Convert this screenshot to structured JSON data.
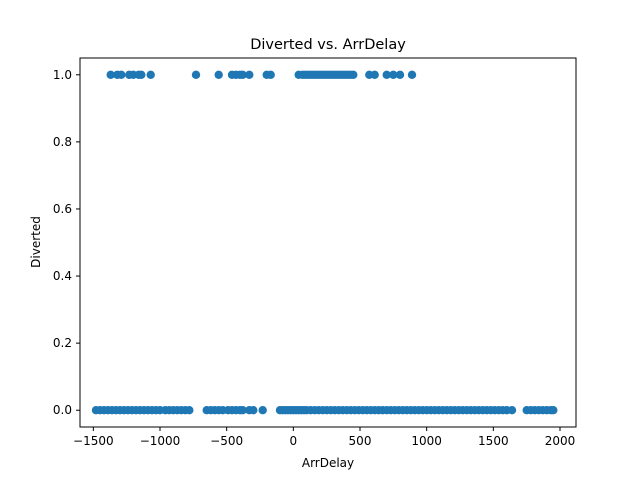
{
  "chart_data": {
    "type": "scatter",
    "title": "Diverted vs. ArrDelay",
    "xlabel": "ArrDelay",
    "ylabel": "Diverted",
    "xlim": [
      -1600,
      2120
    ],
    "ylim": [
      -0.05,
      1.05
    ],
    "xticks": [
      -1500,
      -1000,
      -500,
      0,
      500,
      1000,
      1500,
      2000
    ],
    "yticks": [
      0.0,
      0.2,
      0.4,
      0.6,
      0.8,
      1.0
    ],
    "xtick_labels": [
      "−1500",
      "−1000",
      "−500",
      "0",
      "500",
      "1000",
      "1500",
      "2000"
    ],
    "ytick_labels": [
      "0.0",
      "0.2",
      "0.4",
      "0.6",
      "0.8",
      "1.0"
    ],
    "grid": false,
    "marker_color": "#1f77b4",
    "series": [
      {
        "name": "",
        "points": [
          [
            -1370,
            1
          ],
          [
            -1320,
            1
          ],
          [
            -1290,
            1
          ],
          [
            -1230,
            1
          ],
          [
            -1200,
            1
          ],
          [
            -1160,
            1
          ],
          [
            -1140,
            1
          ],
          [
            -1070,
            1
          ],
          [
            -730,
            1
          ],
          [
            -560,
            1
          ],
          [
            -460,
            1
          ],
          [
            -430,
            1
          ],
          [
            -400,
            1
          ],
          [
            -380,
            1
          ],
          [
            -330,
            1
          ],
          [
            -200,
            1
          ],
          [
            -170,
            1
          ],
          [
            40,
            1
          ],
          [
            70,
            1
          ],
          [
            90,
            1
          ],
          [
            110,
            1
          ],
          [
            130,
            1
          ],
          [
            150,
            1
          ],
          [
            170,
            1
          ],
          [
            190,
            1
          ],
          [
            210,
            1
          ],
          [
            230,
            1
          ],
          [
            250,
            1
          ],
          [
            270,
            1
          ],
          [
            290,
            1
          ],
          [
            310,
            1
          ],
          [
            330,
            1
          ],
          [
            350,
            1
          ],
          [
            370,
            1
          ],
          [
            390,
            1
          ],
          [
            410,
            1
          ],
          [
            430,
            1
          ],
          [
            450,
            1
          ],
          [
            570,
            1
          ],
          [
            610,
            1
          ],
          [
            700,
            1
          ],
          [
            750,
            1
          ],
          [
            800,
            1
          ],
          [
            890,
            1
          ],
          [
            -1480,
            0
          ],
          [
            -1450,
            0
          ],
          [
            -1420,
            0
          ],
          [
            -1390,
            0
          ],
          [
            -1360,
            0
          ],
          [
            -1330,
            0
          ],
          [
            -1300,
            0
          ],
          [
            -1270,
            0
          ],
          [
            -1240,
            0
          ],
          [
            -1210,
            0
          ],
          [
            -1180,
            0
          ],
          [
            -1150,
            0
          ],
          [
            -1120,
            0
          ],
          [
            -1090,
            0
          ],
          [
            -1060,
            0
          ],
          [
            -1030,
            0
          ],
          [
            -1000,
            0
          ],
          [
            -960,
            0
          ],
          [
            -930,
            0
          ],
          [
            -900,
            0
          ],
          [
            -870,
            0
          ],
          [
            -840,
            0
          ],
          [
            -810,
            0
          ],
          [
            -780,
            0
          ],
          [
            -650,
            0
          ],
          [
            -620,
            0
          ],
          [
            -590,
            0
          ],
          [
            -560,
            0
          ],
          [
            -530,
            0
          ],
          [
            -490,
            0
          ],
          [
            -460,
            0
          ],
          [
            -430,
            0
          ],
          [
            -400,
            0
          ],
          [
            -380,
            0
          ],
          [
            -330,
            0
          ],
          [
            -300,
            0
          ],
          [
            -230,
            0
          ],
          [
            -100,
            0
          ],
          [
            -80,
            0
          ],
          [
            -60,
            0
          ],
          [
            -40,
            0
          ],
          [
            -20,
            0
          ],
          [
            0,
            0
          ],
          [
            20,
            0
          ],
          [
            40,
            0
          ],
          [
            60,
            0
          ],
          [
            80,
            0
          ],
          [
            100,
            0
          ],
          [
            130,
            0
          ],
          [
            160,
            0
          ],
          [
            190,
            0
          ],
          [
            220,
            0
          ],
          [
            250,
            0
          ],
          [
            280,
            0
          ],
          [
            310,
            0
          ],
          [
            340,
            0
          ],
          [
            370,
            0
          ],
          [
            400,
            0
          ],
          [
            430,
            0
          ],
          [
            460,
            0
          ],
          [
            490,
            0
          ],
          [
            520,
            0
          ],
          [
            550,
            0
          ],
          [
            580,
            0
          ],
          [
            610,
            0
          ],
          [
            640,
            0
          ],
          [
            670,
            0
          ],
          [
            700,
            0
          ],
          [
            730,
            0
          ],
          [
            760,
            0
          ],
          [
            790,
            0
          ],
          [
            820,
            0
          ],
          [
            850,
            0
          ],
          [
            880,
            0
          ],
          [
            910,
            0
          ],
          [
            940,
            0
          ],
          [
            970,
            0
          ],
          [
            1000,
            0
          ],
          [
            1030,
            0
          ],
          [
            1060,
            0
          ],
          [
            1090,
            0
          ],
          [
            1120,
            0
          ],
          [
            1150,
            0
          ],
          [
            1180,
            0
          ],
          [
            1210,
            0
          ],
          [
            1240,
            0
          ],
          [
            1270,
            0
          ],
          [
            1300,
            0
          ],
          [
            1330,
            0
          ],
          [
            1360,
            0
          ],
          [
            1390,
            0
          ],
          [
            1420,
            0
          ],
          [
            1450,
            0
          ],
          [
            1480,
            0
          ],
          [
            1510,
            0
          ],
          [
            1540,
            0
          ],
          [
            1570,
            0
          ],
          [
            1600,
            0
          ],
          [
            1640,
            0
          ],
          [
            1750,
            0
          ],
          [
            1780,
            0
          ],
          [
            1810,
            0
          ],
          [
            1840,
            0
          ],
          [
            1870,
            0
          ],
          [
            1900,
            0
          ],
          [
            1930,
            0
          ],
          [
            1950,
            0
          ]
        ]
      }
    ]
  }
}
